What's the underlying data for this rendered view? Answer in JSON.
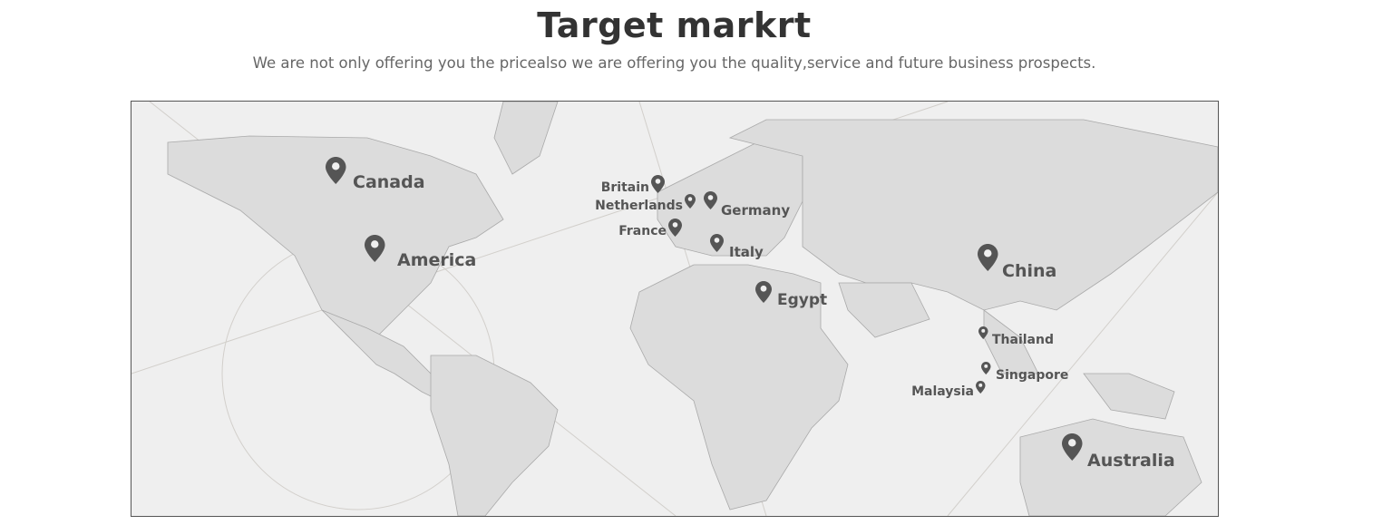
{
  "header": {
    "title": "Target markrt",
    "subtitle": "We are not only offering you the pricealso we are offering you the quality,service and future business prospects."
  },
  "map": {
    "pin_color": "#555555",
    "land_color": "#dcdcdc",
    "ocean_color": "#efefef",
    "markers": [
      {
        "id": "canada",
        "label": "Canada"
      },
      {
        "id": "america",
        "label": "America"
      },
      {
        "id": "britain",
        "label": "Britain"
      },
      {
        "id": "netherlands",
        "label": "Netherlands"
      },
      {
        "id": "germany",
        "label": "Germany"
      },
      {
        "id": "france",
        "label": "France"
      },
      {
        "id": "italy",
        "label": "Italy"
      },
      {
        "id": "egypt",
        "label": "Egypt"
      },
      {
        "id": "china",
        "label": "China"
      },
      {
        "id": "thailand",
        "label": "Thailand"
      },
      {
        "id": "singapore",
        "label": "Singapore"
      },
      {
        "id": "malaysia",
        "label": "Malaysia"
      },
      {
        "id": "australia",
        "label": "Australia"
      }
    ]
  }
}
